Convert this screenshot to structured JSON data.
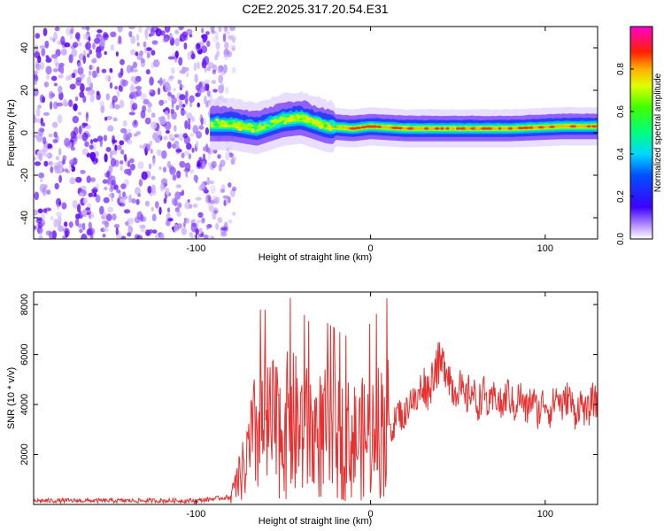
{
  "title": "C2E2.2025.317.20.54.E31",
  "chart_data": [
    {
      "type": "heatmap",
      "name": "spectrogram",
      "xlabel": "Height of straight line (km)",
      "ylabel": "Frequency (Hz)",
      "xlim": [
        -193,
        130
      ],
      "ylim": [
        -50,
        50
      ],
      "xticks": [
        -100,
        0,
        100
      ],
      "xtick_labels": [
        "-100",
        "0",
        "100"
      ],
      "yticks": [
        -40,
        -20,
        0,
        20,
        40
      ],
      "ytick_labels": [
        "-40",
        "-20",
        "0",
        "20",
        "40"
      ],
      "noise_region_x": [
        -193,
        -83
      ],
      "signal_band_center_hz": [
        {
          "x": -92,
          "f": 4
        },
        {
          "x": -80,
          "f": 4
        },
        {
          "x": -65,
          "f": 2
        },
        {
          "x": -50,
          "f": 6
        },
        {
          "x": -40,
          "f": 7
        },
        {
          "x": -25,
          "f": 3
        },
        {
          "x": -10,
          "f": 2
        },
        {
          "x": 0,
          "f": 3
        },
        {
          "x": 20,
          "f": 2
        },
        {
          "x": 50,
          "f": 2
        },
        {
          "x": 80,
          "f": 2
        },
        {
          "x": 110,
          "f": 3
        },
        {
          "x": 130,
          "f": 3
        }
      ],
      "colorbar": {
        "label": "Normalized spectral amplitude",
        "range": [
          0,
          1
        ],
        "ticks": [
          0.0,
          0.2,
          0.4,
          0.6,
          0.8
        ],
        "tick_labels": [
          "0.0",
          "0.2",
          "0.4",
          "0.6",
          "0.8"
        ]
      }
    },
    {
      "type": "line",
      "name": "snr",
      "xlabel": "Height of straight line (km)",
      "ylabel": "SNR (10 * v/v)",
      "xlim": [
        -193,
        130
      ],
      "ylim": [
        0,
        8500
      ],
      "xticks": [
        -100,
        0,
        100
      ],
      "xtick_labels": [
        "-100",
        "0",
        "100"
      ],
      "yticks": [
        2000,
        4000,
        6000,
        8000
      ],
      "ytick_labels": [
        "2000",
        "4000",
        "6000",
        "8000"
      ],
      "color": "#e83030",
      "envelope": [
        {
          "x": -193,
          "y": 150
        },
        {
          "x": -150,
          "y": 150
        },
        {
          "x": -100,
          "y": 150
        },
        {
          "x": -80,
          "y": 300
        },
        {
          "x": -72,
          "y": 1500
        },
        {
          "x": -65,
          "y": 3000
        },
        {
          "x": -55,
          "y": 3000
        },
        {
          "x": -45,
          "y": 3200
        },
        {
          "x": -35,
          "y": 2800
        },
        {
          "x": -25,
          "y": 2800
        },
        {
          "x": -15,
          "y": 2600
        },
        {
          "x": -5,
          "y": 2600
        },
        {
          "x": 5,
          "y": 3000
        },
        {
          "x": 15,
          "y": 3400
        },
        {
          "x": 25,
          "y": 4200
        },
        {
          "x": 35,
          "y": 5000
        },
        {
          "x": 40,
          "y": 5800
        },
        {
          "x": 50,
          "y": 4500
        },
        {
          "x": 60,
          "y": 4300
        },
        {
          "x": 70,
          "y": 4100
        },
        {
          "x": 80,
          "y": 4200
        },
        {
          "x": 90,
          "y": 4000
        },
        {
          "x": 100,
          "y": 3900
        },
        {
          "x": 110,
          "y": 4200
        },
        {
          "x": 120,
          "y": 3800
        },
        {
          "x": 130,
          "y": 4000
        }
      ]
    }
  ]
}
